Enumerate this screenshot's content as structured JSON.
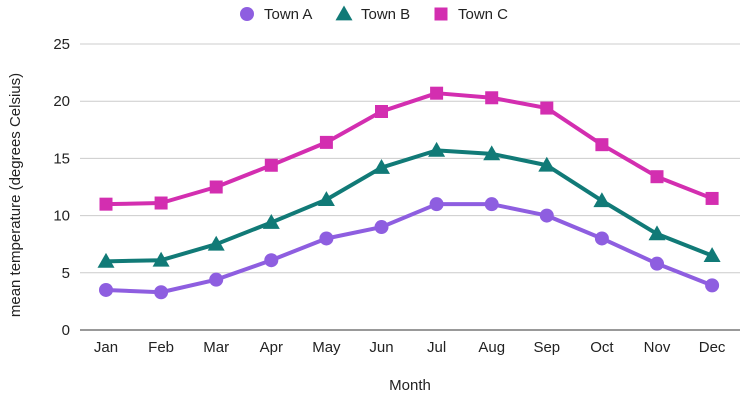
{
  "chart_data": {
    "type": "line",
    "xlabel": "Month",
    "ylabel": "mean temperature (degrees Celsius)",
    "categories": [
      "Jan",
      "Feb",
      "Mar",
      "Apr",
      "May",
      "Jun",
      "Jul",
      "Aug",
      "Sep",
      "Oct",
      "Nov",
      "Dec"
    ],
    "ylim": [
      0,
      25
    ],
    "yticks": [
      0,
      5,
      10,
      15,
      20,
      25
    ],
    "grid": true,
    "legend_position": "top",
    "series": [
      {
        "name": "Town A",
        "marker": "circle",
        "color": "#8e5ee0",
        "values": [
          3.5,
          3.3,
          4.4,
          6.1,
          8.0,
          9.0,
          11.0,
          11.0,
          10.0,
          8.0,
          5.8,
          3.9
        ]
      },
      {
        "name": "Town B",
        "marker": "triangle",
        "color": "#117a77",
        "values": [
          6.0,
          6.1,
          7.5,
          9.4,
          11.4,
          14.2,
          15.7,
          15.4,
          14.4,
          11.3,
          8.4,
          6.5
        ]
      },
      {
        "name": "Town C",
        "marker": "square",
        "color": "#d32eb0",
        "values": [
          11.0,
          11.1,
          12.5,
          14.4,
          16.4,
          19.1,
          20.7,
          20.3,
          19.4,
          16.2,
          13.4,
          11.5
        ]
      }
    ]
  }
}
